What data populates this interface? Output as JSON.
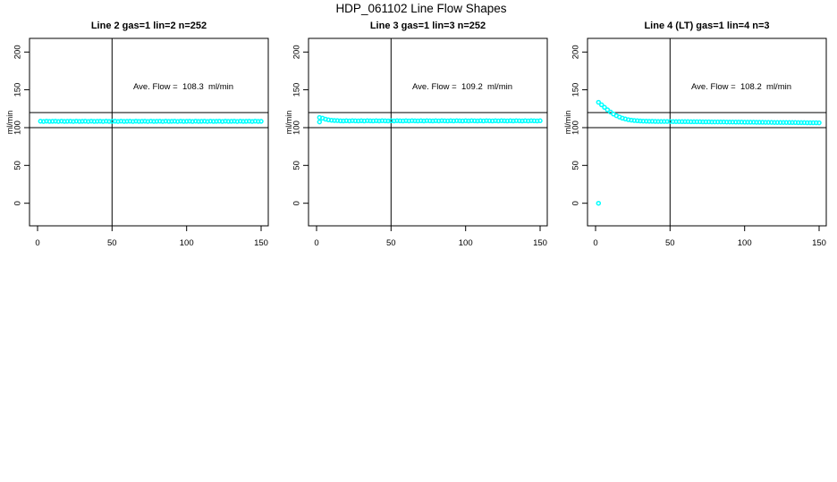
{
  "main_title": "HDP_061102  Line Flow Shapes",
  "colors": {
    "points": "#00FFFF",
    "axis": "#000000",
    "background": "#FFFFFF"
  },
  "chart_data": [
    {
      "type": "scatter",
      "title": "Line 2 gas=1 lin=2 n=252",
      "ylabel": "ml/min",
      "xlabel": "",
      "annotation": "Ave. Flow =  108.3  ml/min",
      "ave_flow_ml_min": 108.3,
      "n_points": 252,
      "x_ticks": [
        0,
        50,
        100,
        150
      ],
      "y_ticks": [
        0,
        50,
        100,
        150,
        200
      ],
      "xlim": [
        -5,
        155
      ],
      "ylim": [
        -30,
        218
      ],
      "hlines": [
        120,
        100
      ],
      "vline": 50,
      "series": {
        "x_start": 2,
        "x_step": 2,
        "y": [
          108.5,
          108.2,
          108.6,
          108.3,
          108.4,
          108.5,
          108.2,
          108.6,
          108.3,
          108.4,
          108.5,
          108.2,
          108.6,
          108.3,
          108.4,
          108.5,
          108.2,
          108.6,
          108.3,
          108.4,
          108.5,
          108.2,
          108.6,
          108.3,
          108.4,
          108.5,
          108.2,
          108.6,
          108.3,
          108.4,
          108.5,
          108.2,
          108.6,
          108.3,
          108.4,
          108.5,
          108.2,
          108.6,
          108.3,
          108.4,
          108.5,
          108.2,
          108.6,
          108.3,
          108.4,
          108.5,
          108.2,
          108.6,
          108.3,
          108.4,
          108.5,
          108.2,
          108.6,
          108.3,
          108.4,
          108.5,
          108.2,
          108.6,
          108.3,
          108.4,
          108.5,
          108.2,
          108.6,
          108.3,
          108.4,
          108.5,
          108.2,
          108.6,
          108.3,
          108.4,
          108.5,
          108.2,
          108.6,
          108.3,
          108.4
        ]
      },
      "extra_points": []
    },
    {
      "type": "scatter",
      "title": "Line 3 gas=1 lin=3 n=252",
      "ylabel": "ml/min",
      "xlabel": "",
      "annotation": "Ave. Flow =  109.2  ml/min",
      "ave_flow_ml_min": 109.2,
      "n_points": 252,
      "x_ticks": [
        0,
        50,
        100,
        150
      ],
      "y_ticks": [
        0,
        50,
        100,
        150,
        200
      ],
      "xlim": [
        -5,
        155
      ],
      "ylim": [
        -30,
        218
      ],
      "hlines": [
        120,
        100
      ],
      "vline": 50,
      "series": {
        "x_start": 2,
        "x_step": 2,
        "y": [
          113.5,
          112.5,
          111.2,
          110.3,
          109.8,
          109.5,
          109.3,
          109.0,
          108.8,
          109.1,
          108.9,
          109.2,
          109.0,
          108.8,
          109.1,
          108.9,
          109.2,
          109.0,
          108.8,
          109.1,
          108.9,
          109.2,
          109.0,
          108.8,
          109.1,
          108.9,
          109.2,
          109.0,
          108.8,
          109.1,
          108.9,
          109.2,
          109.0,
          108.8,
          109.1,
          108.9,
          109.2,
          109.0,
          108.8,
          109.1,
          108.9,
          109.2,
          109.0,
          108.8,
          109.1,
          108.9,
          109.2,
          109.0,
          108.8,
          109.1,
          108.9,
          109.2,
          109.0,
          108.8,
          109.1,
          108.9,
          109.2,
          109.0,
          108.8,
          109.1,
          108.9,
          109.2,
          109.0,
          108.8,
          109.1,
          108.9,
          109.2,
          109.0,
          108.8,
          109.1,
          108.9,
          109.2,
          109.0,
          108.8,
          109.1
        ]
      },
      "extra_points": [
        [
          2,
          107.5
        ]
      ]
    },
    {
      "type": "scatter",
      "title": "Line 4 (LT) gas=1 lin=4 n=3",
      "ylabel": "ml/min",
      "xlabel": "",
      "annotation": "Ave. Flow =  108.2  ml/min",
      "ave_flow_ml_min": 108.2,
      "n_points": 3,
      "x_ticks": [
        0,
        50,
        100,
        150
      ],
      "y_ticks": [
        0,
        50,
        100,
        150,
        200
      ],
      "xlim": [
        -5,
        155
      ],
      "ylim": [
        -30,
        218
      ],
      "hlines": [
        120,
        100
      ],
      "vline": 50,
      "series": {
        "x_start": 2,
        "x_step": 2,
        "y": [
          133.5,
          130.2,
          126.8,
          123.6,
          120.7,
          118.0,
          115.8,
          114.0,
          112.5,
          111.4,
          110.5,
          109.9,
          109.4,
          109.1,
          108.8,
          108.6,
          108.5,
          108.4,
          108.35,
          108.3,
          108.2,
          108.2,
          108.15,
          108.1,
          108.1,
          108.05,
          108.0,
          108.0,
          107.95,
          107.9,
          107.9,
          107.85,
          107.8,
          107.8,
          107.75,
          107.7,
          107.7,
          107.65,
          107.6,
          107.6,
          107.55,
          107.5,
          107.5,
          107.45,
          107.4,
          107.4,
          107.35,
          107.3,
          107.3,
          107.25,
          107.2,
          107.2,
          107.15,
          107.1,
          107.1,
          107.05,
          107.0,
          107.0,
          106.95,
          106.9,
          106.9,
          106.85,
          106.8,
          106.8,
          106.75,
          106.7,
          106.7,
          106.65,
          106.6,
          106.6,
          106.55,
          106.5,
          106.5,
          106.45,
          106.4
        ]
      },
      "extra_points": [
        [
          2,
          0
        ]
      ]
    }
  ]
}
